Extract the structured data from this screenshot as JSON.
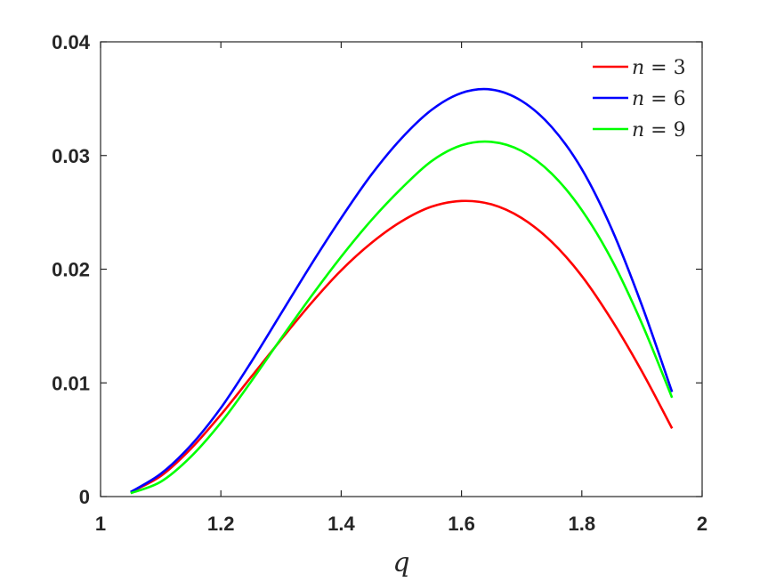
{
  "chart_data": {
    "type": "line",
    "title": "",
    "xlabel": "q",
    "ylabel": "",
    "xlim": [
      1,
      2
    ],
    "ylim": [
      0,
      0.04
    ],
    "xticks": [
      1,
      1.2,
      1.4,
      1.6,
      1.8,
      2
    ],
    "xtick_labels": [
      "1",
      "1.2",
      "1.4",
      "1.6",
      "1.8",
      "2"
    ],
    "yticks": [
      0,
      0.01,
      0.02,
      0.03,
      0.04
    ],
    "ytick_labels": [
      "0",
      "0.01",
      "0.02",
      "0.03",
      "0.04"
    ],
    "grid": false,
    "legend_position": "top-right",
    "series": [
      {
        "name": "n = 3",
        "legend_var": "n",
        "legend_value": "= 3",
        "color": "#ff0000",
        "x": [
          1.05,
          1.1,
          1.15,
          1.2,
          1.25,
          1.3,
          1.35,
          1.4,
          1.45,
          1.5,
          1.55,
          1.6,
          1.65,
          1.7,
          1.75,
          1.8,
          1.85,
          1.9,
          1.95
        ],
        "y": [
          0.0004,
          0.0018,
          0.0042,
          0.0072,
          0.0105,
          0.0138,
          0.017,
          0.0199,
          0.0223,
          0.0242,
          0.0255,
          0.026,
          0.0257,
          0.0245,
          0.0224,
          0.0194,
          0.0155,
          0.011,
          0.006
        ]
      },
      {
        "name": "n = 6",
        "legend_var": "n",
        "legend_value": "= 6",
        "color": "#0000ff",
        "x": [
          1.05,
          1.1,
          1.15,
          1.2,
          1.25,
          1.3,
          1.35,
          1.4,
          1.45,
          1.5,
          1.55,
          1.6,
          1.65,
          1.7,
          1.75,
          1.8,
          1.85,
          1.9,
          1.95
        ],
        "y": [
          0.0004,
          0.002,
          0.0045,
          0.0078,
          0.0118,
          0.0161,
          0.0204,
          0.0245,
          0.0283,
          0.0315,
          0.034,
          0.0355,
          0.0358,
          0.0348,
          0.0325,
          0.0288,
          0.0235,
          0.0168,
          0.0092
        ]
      },
      {
        "name": "n = 9",
        "legend_var": "n",
        "legend_value": "= 9",
        "color": "#00ff00",
        "x": [
          1.05,
          1.1,
          1.15,
          1.2,
          1.25,
          1.3,
          1.35,
          1.4,
          1.45,
          1.5,
          1.55,
          1.6,
          1.65,
          1.7,
          1.75,
          1.8,
          1.85,
          1.9,
          1.95
        ],
        "y": [
          0.0003,
          0.0013,
          0.0035,
          0.0065,
          0.0101,
          0.0139,
          0.0176,
          0.0211,
          0.0243,
          0.0271,
          0.0295,
          0.0309,
          0.0312,
          0.0304,
          0.0284,
          0.0252,
          0.0208,
          0.0152,
          0.0087
        ]
      }
    ]
  }
}
